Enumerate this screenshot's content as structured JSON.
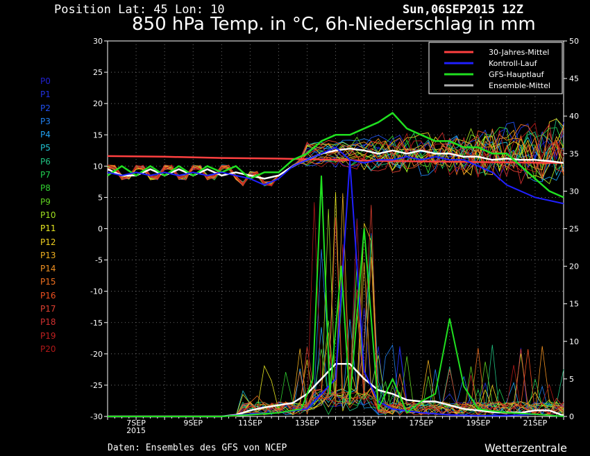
{
  "header": {
    "position": "Position  Lat: 45 Lon: 10",
    "datetime": "Sun,06SEP2015 12Z",
    "title": "850 hPa Temp. in °C, 6h-Niederschlag in mm"
  },
  "footer": {
    "source": "Daten: Ensembles des GFS von NCEP",
    "brand": "Wetterzentrale"
  },
  "members": [
    {
      "label": "P0",
      "color": "#2020d0"
    },
    {
      "label": "P1",
      "color": "#2030e0"
    },
    {
      "label": "P2",
      "color": "#2050f0"
    },
    {
      "label": "P3",
      "color": "#2080f0"
    },
    {
      "label": "P4",
      "color": "#20a0f0"
    },
    {
      "label": "P5",
      "color": "#20c0d0"
    },
    {
      "label": "P6",
      "color": "#20c080"
    },
    {
      "label": "P7",
      "color": "#20d050"
    },
    {
      "label": "P8",
      "color": "#30d030"
    },
    {
      "label": "P9",
      "color": "#60d020"
    },
    {
      "label": "P10",
      "color": "#a0e020"
    },
    {
      "label": "P11",
      "color": "#e8e820"
    },
    {
      "label": "P12",
      "color": "#f0d020"
    },
    {
      "label": "P13",
      "color": "#f0b020"
    },
    {
      "label": "P14",
      "color": "#f09020"
    },
    {
      "label": "P15",
      "color": "#f07020"
    },
    {
      "label": "P16",
      "color": "#f05020"
    },
    {
      "label": "P17",
      "color": "#e04030"
    },
    {
      "label": "P18",
      "color": "#d03030"
    },
    {
      "label": "P19",
      "color": "#c02020"
    },
    {
      "label": "P20",
      "color": "#b01818"
    }
  ],
  "chart_data": {
    "type": "line",
    "title": "850 hPa Temp. in °C, 6h-Niederschlag in mm",
    "x_range_days": [
      "2015-09-06",
      "2015-09-22"
    ],
    "x_ticks": [
      {
        "label": "7SEP",
        "sub": "2015",
        "day": 1
      },
      {
        "label": "9SEP",
        "day": 3
      },
      {
        "label": "11SEP",
        "day": 5
      },
      {
        "label": "13SEP",
        "day": 7
      },
      {
        "label": "15SEP",
        "day": 9
      },
      {
        "label": "17SEP",
        "day": 11
      },
      {
        "label": "19SEP",
        "day": 13
      },
      {
        "label": "21SEP",
        "day": 15
      }
    ],
    "y_left": {
      "min": -30,
      "max": 30,
      "ticks": [
        30,
        25,
        20,
        15,
        10,
        5,
        0,
        -5,
        -10,
        -15,
        -20,
        -25,
        -30
      ]
    },
    "y_right": {
      "min": 0,
      "max": 50,
      "ticks": [
        50,
        45,
        40,
        35,
        30,
        25,
        20,
        15,
        10,
        5,
        0
      ]
    },
    "grid": true,
    "legend_position": "top-right",
    "legend": [
      {
        "name": "30-Jahres-Mittel",
        "color": "#ff4040"
      },
      {
        "name": "Kontroll-Lauf",
        "color": "#2020ff"
      },
      {
        "name": "GFS-Hauptlauf",
        "color": "#20e020"
      },
      {
        "name": "Ensemble-Mittel",
        "color": "#b0b0b0"
      }
    ],
    "series": [
      {
        "name": "30-Jahres-Mittel",
        "axis": "left",
        "color": "#ff4040",
        "width": 2.5,
        "points": [
          [
            0,
            11.6
          ],
          [
            2,
            11.5
          ],
          [
            4,
            11.3
          ],
          [
            6,
            11.2
          ],
          [
            8,
            11.0
          ],
          [
            10,
            10.8
          ],
          [
            12,
            10.7
          ],
          [
            14,
            10.6
          ],
          [
            16,
            10.5
          ]
        ]
      },
      {
        "name": "Ensemble-Mittel",
        "axis": "left",
        "color": "#ffffff",
        "width": 2.5,
        "points": [
          [
            0,
            9.5
          ],
          [
            0.5,
            8.5
          ],
          [
            1,
            8.5
          ],
          [
            1.5,
            9.5
          ],
          [
            2,
            8.5
          ],
          [
            2.5,
            9.5
          ],
          [
            3,
            8.5
          ],
          [
            3.5,
            9.5
          ],
          [
            4,
            8.5
          ],
          [
            4.5,
            9.0
          ],
          [
            5,
            8.5
          ],
          [
            5.5,
            8.0
          ],
          [
            6,
            8.5
          ],
          [
            6.5,
            10
          ],
          [
            7,
            11
          ],
          [
            7.5,
            12
          ],
          [
            8,
            12.5
          ],
          [
            8.5,
            12.8
          ],
          [
            9,
            12.5
          ],
          [
            9.5,
            12
          ],
          [
            10,
            12.5
          ],
          [
            10.5,
            12
          ],
          [
            11,
            12.5
          ],
          [
            11.5,
            12
          ],
          [
            12,
            12
          ],
          [
            12.5,
            11.5
          ],
          [
            13,
            11.5
          ],
          [
            13.5,
            11
          ],
          [
            14,
            11.2
          ],
          [
            14.5,
            11
          ],
          [
            15,
            11
          ],
          [
            15.5,
            10.8
          ],
          [
            16,
            10.5
          ]
        ]
      },
      {
        "name": "GFS-Hauptlauf",
        "axis": "left",
        "color": "#20e020",
        "width": 2.5,
        "points": [
          [
            0,
            8.5
          ],
          [
            0.5,
            10
          ],
          [
            1,
            8.5
          ],
          [
            1.5,
            10
          ],
          [
            2,
            8.5
          ],
          [
            2.5,
            10
          ],
          [
            3,
            8.5
          ],
          [
            3.5,
            10
          ],
          [
            4,
            9
          ],
          [
            4.5,
            10
          ],
          [
            5,
            8
          ],
          [
            5.5,
            9
          ],
          [
            6,
            9
          ],
          [
            6.5,
            11
          ],
          [
            7,
            12
          ],
          [
            7.5,
            14
          ],
          [
            8,
            15
          ],
          [
            8.5,
            15
          ],
          [
            9,
            16
          ],
          [
            9.5,
            17
          ],
          [
            10,
            18.5
          ],
          [
            10.5,
            16
          ],
          [
            11,
            15
          ],
          [
            11.5,
            14
          ],
          [
            12,
            14
          ],
          [
            12.5,
            13
          ],
          [
            13,
            13
          ],
          [
            13.5,
            12
          ],
          [
            14,
            12
          ],
          [
            14.5,
            10
          ],
          [
            15,
            8
          ],
          [
            15.5,
            6
          ],
          [
            16,
            5
          ]
        ]
      },
      {
        "name": "Kontroll-Lauf",
        "axis": "left",
        "color": "#2020ff",
        "width": 2,
        "points": [
          [
            0,
            9
          ],
          [
            0.5,
            8.5
          ],
          [
            1,
            9
          ],
          [
            1.5,
            8.5
          ],
          [
            2,
            9
          ],
          [
            2.5,
            8.5
          ],
          [
            3,
            9
          ],
          [
            3.5,
            8.5
          ],
          [
            4,
            9
          ],
          [
            4.5,
            8.5
          ],
          [
            5,
            8
          ],
          [
            5.5,
            7
          ],
          [
            6,
            8
          ],
          [
            6.5,
            10
          ],
          [
            7,
            11
          ],
          [
            7.5,
            12
          ],
          [
            8,
            13
          ],
          [
            8.5,
            11
          ],
          [
            9,
            10.5
          ],
          [
            9.5,
            11
          ],
          [
            10,
            11
          ],
          [
            10.5,
            11.5
          ],
          [
            11,
            11
          ],
          [
            11.5,
            11.5
          ],
          [
            12,
            11
          ],
          [
            12.5,
            11
          ],
          [
            13,
            10
          ],
          [
            13.5,
            9
          ],
          [
            14,
            7
          ],
          [
            14.5,
            6
          ],
          [
            15,
            5
          ],
          [
            15.5,
            4.5
          ],
          [
            16,
            4
          ]
        ]
      },
      {
        "name": "Ensemble-Mittel Niederschlag",
        "axis": "right",
        "color": "#ffffff",
        "width": 2.5,
        "points": [
          [
            0,
            0
          ],
          [
            4,
            0
          ],
          [
            4.5,
            0.2
          ],
          [
            5,
            0.8
          ],
          [
            5.5,
            1.2
          ],
          [
            6,
            1.5
          ],
          [
            6.5,
            1.8
          ],
          [
            7,
            3
          ],
          [
            7.5,
            5
          ],
          [
            8,
            7
          ],
          [
            8.5,
            7
          ],
          [
            9,
            5
          ],
          [
            9.5,
            3.5
          ],
          [
            10,
            3
          ],
          [
            10.5,
            2.2
          ],
          [
            11,
            2
          ],
          [
            11.5,
            2
          ],
          [
            12,
            1.5
          ],
          [
            12.5,
            1
          ],
          [
            13,
            0.8
          ],
          [
            13.5,
            0.6
          ],
          [
            14,
            0.5
          ],
          [
            14.5,
            0.5
          ],
          [
            15,
            0.8
          ],
          [
            15.5,
            0.8
          ],
          [
            16,
            0.1
          ]
        ]
      },
      {
        "name": "Kontroll-Lauf Niederschlag",
        "axis": "right",
        "color": "#2020ff",
        "width": 2,
        "points": [
          [
            0,
            0
          ],
          [
            4,
            0
          ],
          [
            5,
            0.3
          ],
          [
            6,
            0.5
          ],
          [
            7,
            1
          ],
          [
            7.5,
            3
          ],
          [
            8,
            5
          ],
          [
            8.5,
            34
          ],
          [
            9,
            6
          ],
          [
            9.5,
            2
          ],
          [
            10,
            1
          ],
          [
            11,
            0.5
          ],
          [
            12,
            0.2
          ],
          [
            13,
            0.1
          ],
          [
            14,
            0.1
          ],
          [
            15,
            0.3
          ],
          [
            16,
            0
          ]
        ]
      },
      {
        "name": "GFS-Hauptlauf Niederschlag",
        "axis": "right",
        "color": "#20e020",
        "width": 2,
        "points": [
          [
            0,
            0
          ],
          [
            4,
            0
          ],
          [
            5,
            0.2
          ],
          [
            6,
            0.5
          ],
          [
            6.8,
            1
          ],
          [
            7.2,
            5
          ],
          [
            7.5,
            32
          ],
          [
            7.8,
            3
          ],
          [
            8.2,
            20
          ],
          [
            8.5,
            2
          ],
          [
            9,
            25
          ],
          [
            9.5,
            1
          ],
          [
            10,
            5
          ],
          [
            10.5,
            0.5
          ],
          [
            11,
            2
          ],
          [
            11.5,
            3
          ],
          [
            12,
            13
          ],
          [
            12.5,
            4
          ],
          [
            13,
            1
          ],
          [
            14,
            0.5
          ],
          [
            15,
            0.3
          ],
          [
            16,
            0
          ]
        ]
      }
    ]
  }
}
